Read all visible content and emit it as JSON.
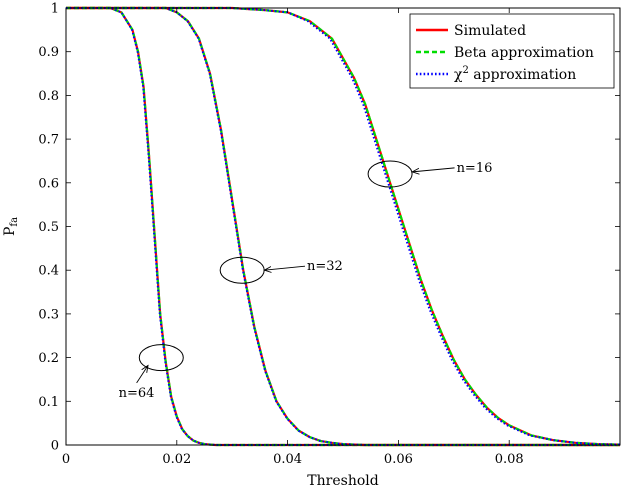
{
  "chart_data": {
    "type": "line",
    "title": "",
    "xlabel": "Threshold",
    "ylabel": "Pfa",
    "ylabel_main": "P",
    "ylabel_sub": "fa",
    "xlim": [
      0,
      0.1
    ],
    "ylim": [
      0,
      1
    ],
    "x_ticks": [
      0,
      0.02,
      0.04,
      0.06,
      0.08
    ],
    "x_tick_labels": [
      "0",
      "0.02",
      "0.04",
      "0.06",
      "0.08"
    ],
    "y_ticks": [
      0,
      0.1,
      0.2,
      0.3,
      0.4,
      0.5,
      0.6,
      0.7,
      0.8,
      0.9,
      1
    ],
    "y_tick_labels": [
      "0",
      "0.1",
      "0.2",
      "0.3",
      "0.4",
      "0.5",
      "0.6",
      "0.7",
      "0.8",
      "0.9",
      "1"
    ],
    "grid": false,
    "legend_position": "top-right",
    "legend": [
      {
        "label": "Simulated",
        "color": "#ff0000",
        "style": "solid"
      },
      {
        "label": "Beta approximation",
        "color": "#00dd00",
        "style": "dashed"
      },
      {
        "label_main": "χ",
        "label_sup": "2",
        "label_rest": " approximation",
        "color": "#0000ff",
        "style": "dotted"
      }
    ],
    "series": [
      {
        "group": "n=64",
        "x": [
          0,
          0.008,
          0.01,
          0.012,
          0.013,
          0.014,
          0.015,
          0.016,
          0.017,
          0.018,
          0.019,
          0.02,
          0.021,
          0.022,
          0.023,
          0.024,
          0.025,
          0.027,
          0.1
        ],
        "y": [
          1,
          1,
          0.99,
          0.95,
          0.9,
          0.82,
          0.66,
          0.48,
          0.3,
          0.19,
          0.11,
          0.065,
          0.036,
          0.02,
          0.01,
          0.005,
          0.002,
          0,
          0
        ]
      },
      {
        "group": "n=32",
        "x": [
          0,
          0.018,
          0.02,
          0.022,
          0.024,
          0.026,
          0.028,
          0.03,
          0.032,
          0.034,
          0.036,
          0.038,
          0.04,
          0.042,
          0.044,
          0.046,
          0.048,
          0.05,
          0.054,
          0.1
        ],
        "y": [
          1,
          1,
          0.99,
          0.97,
          0.93,
          0.85,
          0.72,
          0.56,
          0.4,
          0.27,
          0.17,
          0.1,
          0.06,
          0.033,
          0.018,
          0.009,
          0.005,
          0.002,
          0,
          0
        ]
      },
      {
        "group": "n=16",
        "x": [
          0,
          0.03,
          0.036,
          0.04,
          0.044,
          0.048,
          0.052,
          0.054,
          0.056,
          0.058,
          0.06,
          0.062,
          0.064,
          0.066,
          0.068,
          0.07,
          0.072,
          0.074,
          0.076,
          0.078,
          0.08,
          0.084,
          0.088,
          0.092,
          0.096,
          0.1
        ],
        "y": [
          1,
          1,
          0.995,
          0.99,
          0.97,
          0.93,
          0.84,
          0.78,
          0.7,
          0.62,
          0.54,
          0.46,
          0.38,
          0.31,
          0.25,
          0.195,
          0.15,
          0.115,
          0.085,
          0.062,
          0.045,
          0.022,
          0.011,
          0.005,
          0.002,
          0.001
        ]
      }
    ],
    "annotations": [
      {
        "text": "n=64",
        "ellipse_at": [
          0.0172,
          0.2
        ],
        "label_at": [
          0.0095,
          0.11
        ],
        "arrow_to": [
          0.0148,
          0.182
        ]
      },
      {
        "text": "n=32",
        "ellipse_at": [
          0.0318,
          0.4
        ],
        "label_at": [
          0.0435,
          0.4
        ],
        "arrow_to": [
          0.0358,
          0.4
        ]
      },
      {
        "text": "n=16",
        "ellipse_at": [
          0.0585,
          0.62
        ],
        "label_at": [
          0.0705,
          0.625
        ],
        "arrow_to": [
          0.0625,
          0.625
        ]
      }
    ]
  }
}
